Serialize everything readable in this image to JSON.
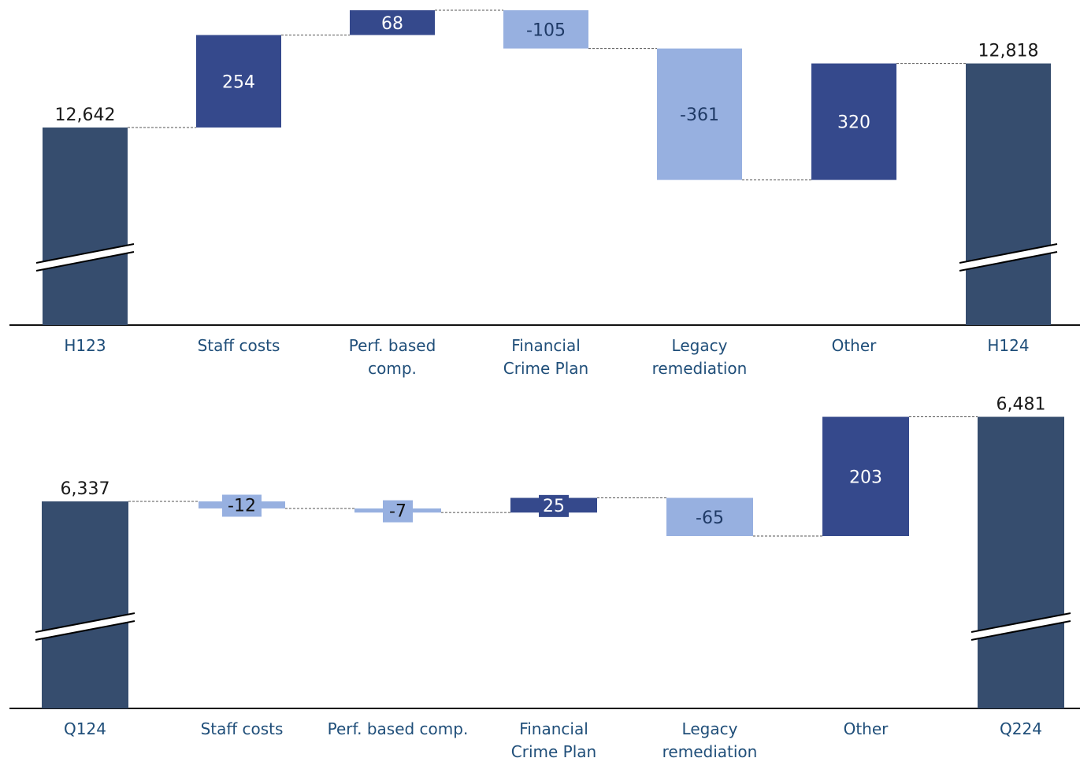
{
  "colors": {
    "total": "#364d6e",
    "increase": "#35498c",
    "decrease": "#97b0e0",
    "axis": "#111111",
    "category_label": "#1f4e79",
    "total_label": "#1a1a1a",
    "connector": "#555555"
  },
  "chart_data": [
    {
      "type": "bar",
      "subtype": "waterfall",
      "categories": [
        "H123",
        "Staff costs",
        "Perf. based\ncomp.",
        "Financial\nCrime Plan",
        "Legacy\nremediation",
        "Other",
        "H124"
      ],
      "start_total": 12642,
      "deltas": [
        254,
        68,
        -105,
        -361,
        320
      ],
      "end_total": 12818,
      "value_labels": [
        "12,642",
        "254",
        "68",
        "-105",
        "-361",
        "320",
        "12,818"
      ],
      "axis_break": true
    },
    {
      "type": "bar",
      "subtype": "waterfall",
      "categories": [
        "Q124",
        "Staff costs",
        "Perf. based comp.",
        "Financial\nCrime Plan",
        "Legacy\nremediation",
        "Other",
        "Q224"
      ],
      "start_total": 6337,
      "deltas": [
        -12,
        -7,
        25,
        -65,
        203
      ],
      "end_total": 6481,
      "value_labels": [
        "6,337",
        "-12",
        "-7",
        "25",
        "-65",
        "203",
        "6,481"
      ],
      "axis_break": true
    }
  ]
}
